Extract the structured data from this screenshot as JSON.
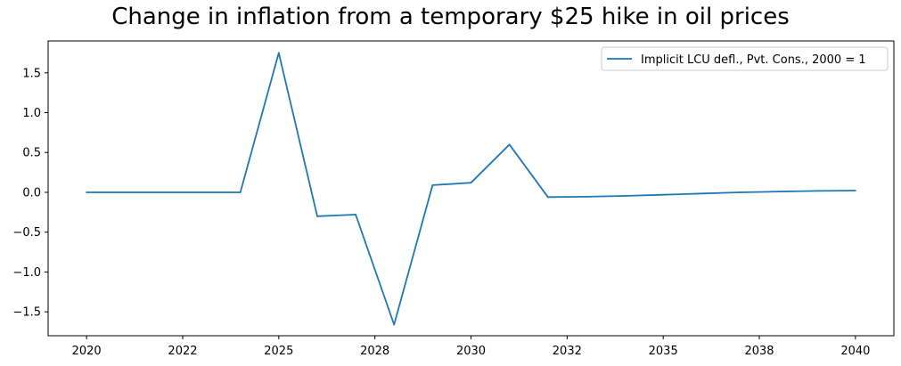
{
  "chart_data": {
    "type": "line",
    "title": "Change in inflation from a temporary $25 hike in oil prices",
    "xlabel": "",
    "ylabel": "",
    "x": [
      2020,
      2021,
      2022,
      2023,
      2024,
      2025,
      2026,
      2027,
      2028,
      2029,
      2030,
      2031,
      2032,
      2033,
      2034,
      2035,
      2036,
      2037,
      2038,
      2039,
      2040
    ],
    "xlim": [
      2019.0,
      2041.0
    ],
    "ylim": [
      -1.8,
      1.9
    ],
    "x_ticks": [
      {
        "value": 2020,
        "label": "2020"
      },
      {
        "value": 2022.5,
        "label": "2022"
      },
      {
        "value": 2025,
        "label": "2025"
      },
      {
        "value": 2027.5,
        "label": "2028"
      },
      {
        "value": 2030,
        "label": "2030"
      },
      {
        "value": 2032.5,
        "label": "2032"
      },
      {
        "value": 2035,
        "label": "2035"
      },
      {
        "value": 2037.5,
        "label": "2038"
      },
      {
        "value": 2040,
        "label": "2040"
      }
    ],
    "y_ticks": [
      {
        "value": -1.5,
        "label": "−1.5"
      },
      {
        "value": -1.0,
        "label": "−1.0"
      },
      {
        "value": -0.5,
        "label": "−0.5"
      },
      {
        "value": 0.0,
        "label": "0.0"
      },
      {
        "value": 0.5,
        "label": "0.5"
      },
      {
        "value": 1.0,
        "label": "1.0"
      },
      {
        "value": 1.5,
        "label": "1.5"
      }
    ],
    "grid": false,
    "legend_position": "top-right",
    "series": [
      {
        "name": "Implicit LCU defl., Pvt. Cons., 2000 = 1",
        "color": "#1f77b4",
        "values": [
          0.0,
          0.0,
          0.0,
          0.0,
          0.0,
          1.75,
          -0.3,
          -0.28,
          -1.66,
          0.09,
          0.12,
          0.6,
          -0.06,
          -0.055,
          -0.045,
          -0.03,
          -0.015,
          0.0,
          0.01,
          0.018,
          0.022
        ]
      }
    ]
  }
}
